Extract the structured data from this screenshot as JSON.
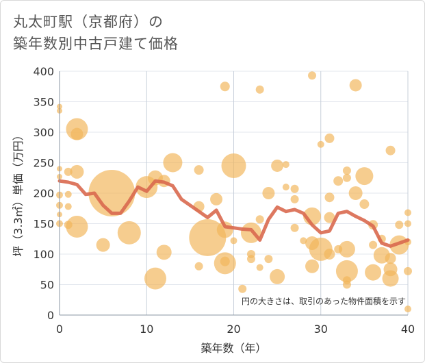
{
  "chart_data": {
    "type": "scatter",
    "title_line1": "丸太町駅（京都府）の",
    "title_line2": "築年数別中古戸建て価格",
    "xlabel": "築年数（年）",
    "ylabel": "坪（3.3㎡）単価（万円）",
    "xlim": [
      0,
      40
    ],
    "ylim": [
      0,
      400
    ],
    "xticks": [
      "0",
      "10",
      "20",
      "30",
      "40"
    ],
    "yticks": [
      "0",
      "50",
      "100",
      "150",
      "200",
      "250",
      "300",
      "350",
      "400"
    ],
    "annotation": "円の大きさは、取引のあった物件面積を示す",
    "bubble_color": "#f2b55a",
    "line_color": "#d9694f",
    "bubbles": [
      {
        "x": 0,
        "y": 342,
        "r": 4
      },
      {
        "x": 0,
        "y": 335,
        "r": 4
      },
      {
        "x": 0,
        "y": 240,
        "r": 4
      },
      {
        "x": 0,
        "y": 227,
        "r": 4
      },
      {
        "x": 0,
        "y": 197,
        "r": 5
      },
      {
        "x": 0,
        "y": 180,
        "r": 5
      },
      {
        "x": 0,
        "y": 165,
        "r": 4
      },
      {
        "x": 0,
        "y": 150,
        "r": 5
      },
      {
        "x": 1,
        "y": 235,
        "r": 6
      },
      {
        "x": 1,
        "y": 198,
        "r": 5
      },
      {
        "x": 1,
        "y": 178,
        "r": 5
      },
      {
        "x": 1,
        "y": 148,
        "r": 6
      },
      {
        "x": 2,
        "y": 305,
        "r": 16
      },
      {
        "x": 2,
        "y": 297,
        "r": 9
      },
      {
        "x": 2,
        "y": 235,
        "r": 10
      },
      {
        "x": 2,
        "y": 145,
        "r": 16
      },
      {
        "x": 5,
        "y": 115,
        "r": 10
      },
      {
        "x": 6,
        "y": 200,
        "r": 34
      },
      {
        "x": 8,
        "y": 135,
        "r": 17
      },
      {
        "x": 10,
        "y": 210,
        "r": 16
      },
      {
        "x": 11,
        "y": 60,
        "r": 16
      },
      {
        "x": 11,
        "y": 225,
        "r": 11
      },
      {
        "x": 12,
        "y": 103,
        "r": 11
      },
      {
        "x": 12,
        "y": 220,
        "r": 9
      },
      {
        "x": 13,
        "y": 250,
        "r": 14
      },
      {
        "x": 16,
        "y": 238,
        "r": 7
      },
      {
        "x": 16,
        "y": 178,
        "r": 8
      },
      {
        "x": 16,
        "y": 80,
        "r": 6
      },
      {
        "x": 17,
        "y": 127,
        "r": 27
      },
      {
        "x": 18,
        "y": 190,
        "r": 9
      },
      {
        "x": 19,
        "y": 375,
        "r": 7
      },
      {
        "x": 19,
        "y": 140,
        "r": 12
      },
      {
        "x": 19,
        "y": 85,
        "r": 16
      },
      {
        "x": 19,
        "y": 88,
        "r": 7
      },
      {
        "x": 20,
        "y": 245,
        "r": 18
      },
      {
        "x": 20,
        "y": 122,
        "r": 5
      },
      {
        "x": 21,
        "y": 43,
        "r": 6
      },
      {
        "x": 22,
        "y": 135,
        "r": 15
      },
      {
        "x": 22,
        "y": 100,
        "r": 6
      },
      {
        "x": 22,
        "y": 92,
        "r": 6
      },
      {
        "x": 23,
        "y": 370,
        "r": 6
      },
      {
        "x": 23,
        "y": 157,
        "r": 6
      },
      {
        "x": 23,
        "y": 78,
        "r": 5
      },
      {
        "x": 24,
        "y": 200,
        "r": 9
      },
      {
        "x": 24,
        "y": 92,
        "r": 6
      },
      {
        "x": 25,
        "y": 245,
        "r": 9
      },
      {
        "x": 25,
        "y": 63,
        "r": 11
      },
      {
        "x": 26,
        "y": 247,
        "r": 5
      },
      {
        "x": 26,
        "y": 210,
        "r": 5
      },
      {
        "x": 27,
        "y": 207,
        "r": 6
      },
      {
        "x": 27,
        "y": 190,
        "r": 6
      },
      {
        "x": 27,
        "y": 143,
        "r": 6
      },
      {
        "x": 28,
        "y": 122,
        "r": 5
      },
      {
        "x": 29,
        "y": 393,
        "r": 6
      },
      {
        "x": 29,
        "y": 162,
        "r": 13
      },
      {
        "x": 29,
        "y": 118,
        "r": 10
      },
      {
        "x": 29,
        "y": 80,
        "r": 10
      },
      {
        "x": 30,
        "y": 280,
        "r": 5
      },
      {
        "x": 30,
        "y": 108,
        "r": 17
      },
      {
        "x": 31,
        "y": 290,
        "r": 7
      },
      {
        "x": 31,
        "y": 193,
        "r": 7
      },
      {
        "x": 31,
        "y": 160,
        "r": 8
      },
      {
        "x": 31,
        "y": 100,
        "r": 8
      },
      {
        "x": 32,
        "y": 220,
        "r": 7
      },
      {
        "x": 32,
        "y": 108,
        "r": 6
      },
      {
        "x": 33,
        "y": 237,
        "r": 6
      },
      {
        "x": 33,
        "y": 225,
        "r": 6
      },
      {
        "x": 33,
        "y": 108,
        "r": 12
      },
      {
        "x": 33,
        "y": 72,
        "r": 16
      },
      {
        "x": 33,
        "y": 57,
        "r": 6
      },
      {
        "x": 33,
        "y": 50,
        "r": 6
      },
      {
        "x": 34,
        "y": 377,
        "r": 9
      },
      {
        "x": 34,
        "y": 200,
        "r": 10
      },
      {
        "x": 35,
        "y": 228,
        "r": 13
      },
      {
        "x": 35,
        "y": 182,
        "r": 7
      },
      {
        "x": 36,
        "y": 148,
        "r": 7
      },
      {
        "x": 36,
        "y": 70,
        "r": 12
      },
      {
        "x": 36,
        "y": 115,
        "r": 6
      },
      {
        "x": 37,
        "y": 98,
        "r": 12
      },
      {
        "x": 37,
        "y": 125,
        "r": 6
      },
      {
        "x": 38,
        "y": 270,
        "r": 7
      },
      {
        "x": 38,
        "y": 93,
        "r": 8
      },
      {
        "x": 38,
        "y": 75,
        "r": 10
      },
      {
        "x": 38,
        "y": 60,
        "r": 12
      },
      {
        "x": 39,
        "y": 115,
        "r": 14
      },
      {
        "x": 39,
        "y": 148,
        "r": 6
      },
      {
        "x": 40,
        "y": 168,
        "r": 5
      },
      {
        "x": 40,
        "y": 150,
        "r": 5
      },
      {
        "x": 40,
        "y": 120,
        "r": 5
      },
      {
        "x": 40,
        "y": 72,
        "r": 6
      },
      {
        "x": 40,
        "y": 10,
        "r": 5
      }
    ],
    "trend": {
      "x": [
        0,
        1,
        2,
        3,
        4,
        5,
        6,
        7,
        8,
        9,
        10,
        11,
        12,
        13,
        14,
        15,
        16,
        17,
        18,
        19,
        20,
        21,
        22,
        23,
        24,
        25,
        26,
        27,
        28,
        29,
        30,
        31,
        32,
        33,
        34,
        35,
        36,
        37,
        38,
        39,
        40
      ],
      "y": [
        220,
        218,
        214,
        198,
        200,
        180,
        167,
        167,
        187,
        210,
        203,
        220,
        218,
        212,
        190,
        180,
        170,
        160,
        172,
        145,
        143,
        141,
        140,
        123,
        157,
        177,
        170,
        173,
        167,
        148,
        135,
        138,
        167,
        170,
        162,
        155,
        146,
        118,
        113,
        118,
        123
      ]
    }
  }
}
